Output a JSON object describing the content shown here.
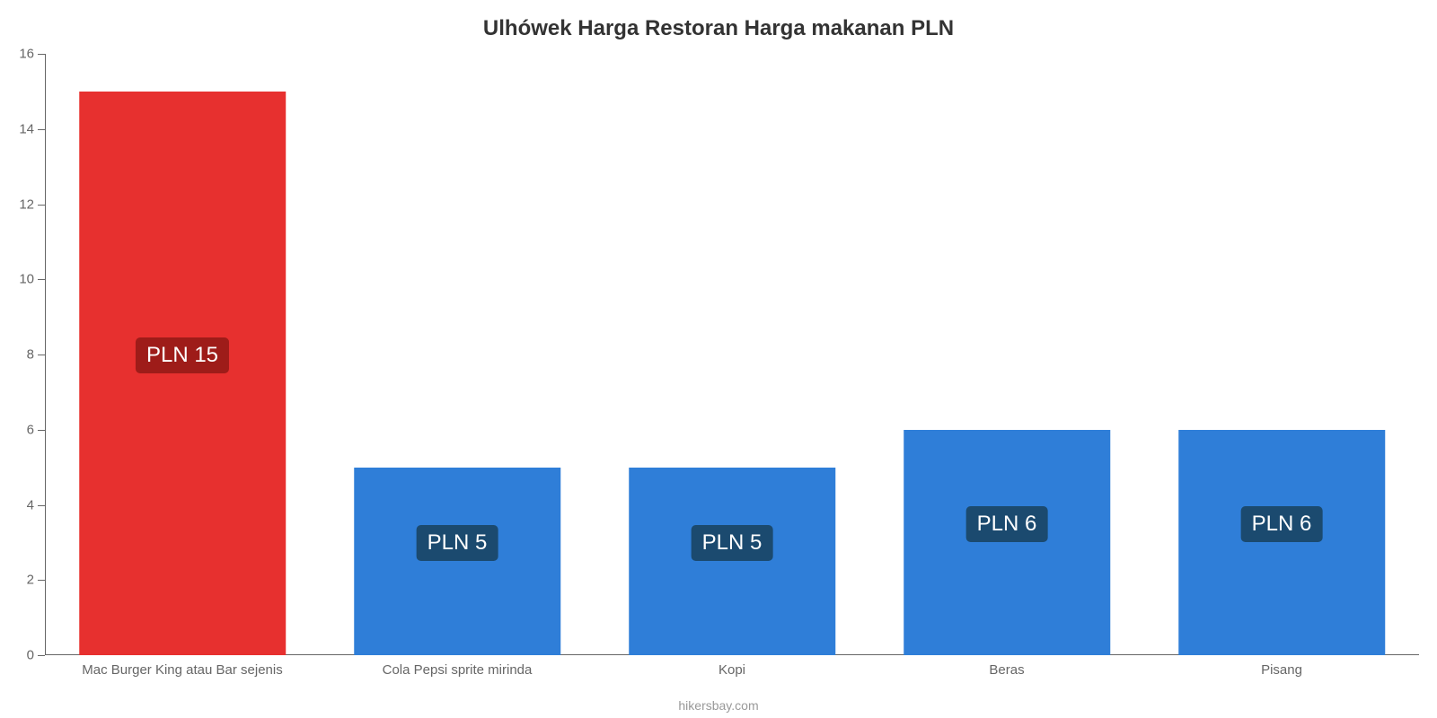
{
  "chart": {
    "type": "bar",
    "title": "Ulhówek Harga Restoran Harga makanan PLN",
    "title_fontsize": 24,
    "title_color": "#333333",
    "background_color": "#ffffff",
    "axis_color": "#666666",
    "tick_label_fontsize": 15,
    "tick_label_color": "#666666",
    "y": {
      "min": 0,
      "max": 16,
      "tick_step": 2
    },
    "bar_width_pct": 75,
    "categories": [
      "Mac Burger King atau Bar sejenis",
      "Cola Pepsi sprite mirinda",
      "Kopi",
      "Beras",
      "Pisang"
    ],
    "values": [
      15,
      5,
      5,
      6,
      6
    ],
    "bar_colors": [
      "#e7302f",
      "#2f7ed8",
      "#2f7ed8",
      "#2f7ed8",
      "#2f7ed8"
    ],
    "value_labels": [
      "PLN 15",
      "PLN 5",
      "PLN 5",
      "PLN 6",
      "PLN 6"
    ],
    "value_label_fontsize": 24,
    "value_label_fg": "#ffffff",
    "value_badge_bg": {
      "red": "#9e1c19",
      "blue": "#1b4a6f"
    },
    "footer": "hikersbay.com",
    "footer_color": "#999999",
    "footer_fontsize": 14
  }
}
